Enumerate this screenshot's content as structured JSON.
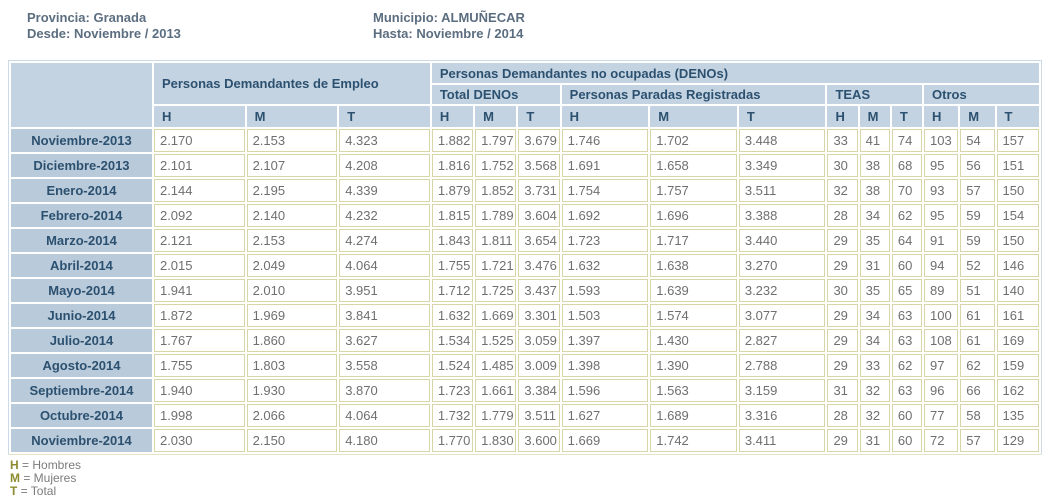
{
  "info": {
    "provincia": "Provincia: Granada",
    "desde": "Desde: Noviembre / 2013",
    "municipio": "Municipio: ALMUÑECAR",
    "hasta": "Hasta: Noviembre / 2014"
  },
  "table": {
    "group_employment": "Personas Demandantes de Empleo",
    "group_denos": "Personas Demandantes no ocupadas (DENOs)",
    "subgroups": [
      "Total DENOs",
      "Personas Paradas Registradas",
      "TEAS",
      "Otros"
    ],
    "col_headers": [
      "H",
      "M",
      "T"
    ],
    "rows": [
      {
        "label": "Noviembre-2013",
        "values": [
          "2.170",
          "2.153",
          "4.323",
          "1.882",
          "1.797",
          "3.679",
          "1.746",
          "1.702",
          "3.448",
          "33",
          "41",
          "74",
          "103",
          "54",
          "157"
        ]
      },
      {
        "label": "Diciembre-2013",
        "values": [
          "2.101",
          "2.107",
          "4.208",
          "1.816",
          "1.752",
          "3.568",
          "1.691",
          "1.658",
          "3.349",
          "30",
          "38",
          "68",
          "95",
          "56",
          "151"
        ]
      },
      {
        "label": "Enero-2014",
        "values": [
          "2.144",
          "2.195",
          "4.339",
          "1.879",
          "1.852",
          "3.731",
          "1.754",
          "1.757",
          "3.511",
          "32",
          "38",
          "70",
          "93",
          "57",
          "150"
        ]
      },
      {
        "label": "Febrero-2014",
        "values": [
          "2.092",
          "2.140",
          "4.232",
          "1.815",
          "1.789",
          "3.604",
          "1.692",
          "1.696",
          "3.388",
          "28",
          "34",
          "62",
          "95",
          "59",
          "154"
        ]
      },
      {
        "label": "Marzo-2014",
        "values": [
          "2.121",
          "2.153",
          "4.274",
          "1.843",
          "1.811",
          "3.654",
          "1.723",
          "1.717",
          "3.440",
          "29",
          "35",
          "64",
          "91",
          "59",
          "150"
        ]
      },
      {
        "label": "Abril-2014",
        "values": [
          "2.015",
          "2.049",
          "4.064",
          "1.755",
          "1.721",
          "3.476",
          "1.632",
          "1.638",
          "3.270",
          "29",
          "31",
          "60",
          "94",
          "52",
          "146"
        ]
      },
      {
        "label": "Mayo-2014",
        "values": [
          "1.941",
          "2.010",
          "3.951",
          "1.712",
          "1.725",
          "3.437",
          "1.593",
          "1.639",
          "3.232",
          "30",
          "35",
          "65",
          "89",
          "51",
          "140"
        ]
      },
      {
        "label": "Junio-2014",
        "values": [
          "1.872",
          "1.969",
          "3.841",
          "1.632",
          "1.669",
          "3.301",
          "1.503",
          "1.574",
          "3.077",
          "29",
          "34",
          "63",
          "100",
          "61",
          "161"
        ]
      },
      {
        "label": "Julio-2014",
        "values": [
          "1.767",
          "1.860",
          "3.627",
          "1.534",
          "1.525",
          "3.059",
          "1.397",
          "1.430",
          "2.827",
          "29",
          "34",
          "63",
          "108",
          "61",
          "169"
        ]
      },
      {
        "label": "Agosto-2014",
        "values": [
          "1.755",
          "1.803",
          "3.558",
          "1.524",
          "1.485",
          "3.009",
          "1.398",
          "1.390",
          "2.788",
          "29",
          "33",
          "62",
          "97",
          "62",
          "159"
        ]
      },
      {
        "label": "Septiembre-2014",
        "values": [
          "1.940",
          "1.930",
          "3.870",
          "1.723",
          "1.661",
          "3.384",
          "1.596",
          "1.563",
          "3.159",
          "31",
          "32",
          "63",
          "96",
          "66",
          "162"
        ]
      },
      {
        "label": "Octubre-2014",
        "values": [
          "1.998",
          "2.066",
          "4.064",
          "1.732",
          "1.779",
          "3.511",
          "1.627",
          "1.689",
          "3.316",
          "28",
          "32",
          "60",
          "77",
          "58",
          "135"
        ]
      },
      {
        "label": "Noviembre-2014",
        "values": [
          "2.030",
          "2.150",
          "4.180",
          "1.770",
          "1.830",
          "3.600",
          "1.669",
          "1.742",
          "3.411",
          "29",
          "31",
          "60",
          "72",
          "57",
          "129"
        ]
      }
    ]
  },
  "legend": [
    {
      "key": "H",
      "text": "= Hombres"
    },
    {
      "key": "M",
      "text": "= Mujeres"
    },
    {
      "key": "T",
      "text": "= Total"
    }
  ],
  "colors": {
    "header_bg": "#c4d3e1",
    "row_label_bg": "#b9cada",
    "header_text": "#2c5170",
    "data_text": "#6f6f6f",
    "cell_border": "#d6d6a8",
    "outer_border": "#ccdae6",
    "info_text": "#5b6e80",
    "legend_key": "#8b8b2f"
  }
}
